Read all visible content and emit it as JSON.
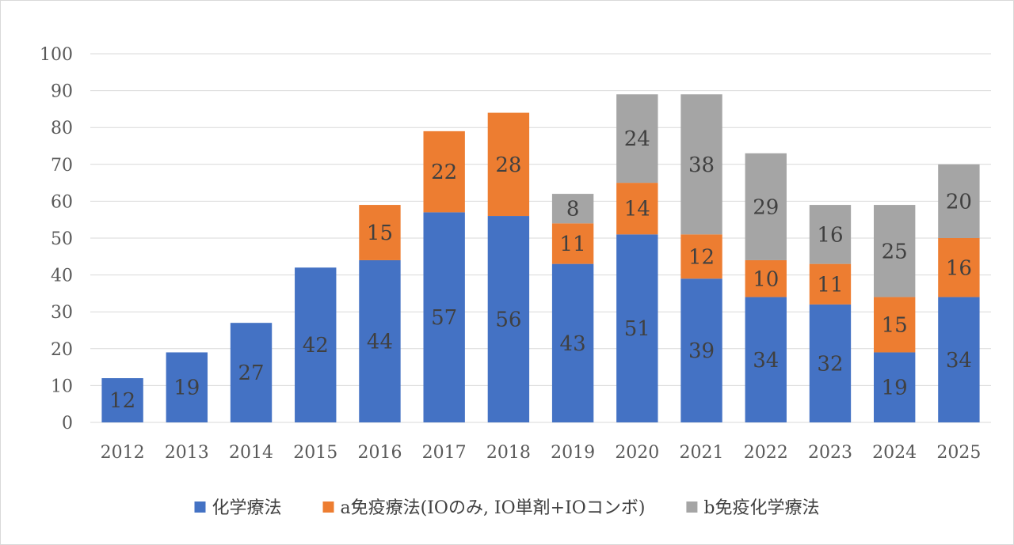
{
  "chart_data": {
    "type": "bar",
    "stacked": true,
    "categories": [
      "2012",
      "2013",
      "2014",
      "2015",
      "2016",
      "2017",
      "2018",
      "2019",
      "2020",
      "2021",
      "2022",
      "2023",
      "2024",
      "2025"
    ],
    "series": [
      {
        "name": "化学療法",
        "color": "#4472c4",
        "values": [
          12,
          19,
          27,
          42,
          44,
          57,
          56,
          43,
          51,
          39,
          34,
          32,
          19,
          34
        ]
      },
      {
        "name": "a免疫療法(IOのみ, IO単剤+IOコンボ)",
        "color": "#ed7d31",
        "values": [
          null,
          null,
          null,
          null,
          15,
          22,
          28,
          11,
          14,
          12,
          10,
          11,
          15,
          16
        ]
      },
      {
        "name": "b免疫化学療法",
        "color": "#a5a5a5",
        "values": [
          null,
          null,
          null,
          null,
          null,
          null,
          null,
          8,
          24,
          38,
          29,
          16,
          25,
          20
        ]
      }
    ],
    "ylim": [
      0,
      100
    ],
    "yticks": [
      0,
      10,
      20,
      30,
      40,
      50,
      60,
      70,
      80,
      90,
      100
    ],
    "grid": true,
    "legend_position": "bottom",
    "title": "",
    "xlabel": "",
    "ylabel": ""
  }
}
